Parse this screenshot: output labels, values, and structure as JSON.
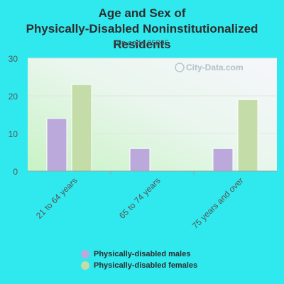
{
  "chart_data": {
    "type": "bar",
    "title": "Age and Sex of Physically-Disabled Noninstitutionalized Residents",
    "subtitle": "Zip code 95835",
    "watermark": "City-Data.com",
    "categories": [
      "21 to 64 years",
      "65 to 74 years",
      "75 years and over"
    ],
    "series": [
      {
        "name": "Physically-disabled males",
        "values": [
          14,
          6,
          6
        ],
        "color": "#bca9dc"
      },
      {
        "name": "Physically-disabled females",
        "values": [
          23,
          0,
          19
        ],
        "color": "#c3dca8"
      }
    ],
    "ylim": [
      0,
      30
    ],
    "yticks": [
      "0",
      "10",
      "20",
      "30"
    ],
    "grid": true,
    "legend_position": "bottom"
  }
}
